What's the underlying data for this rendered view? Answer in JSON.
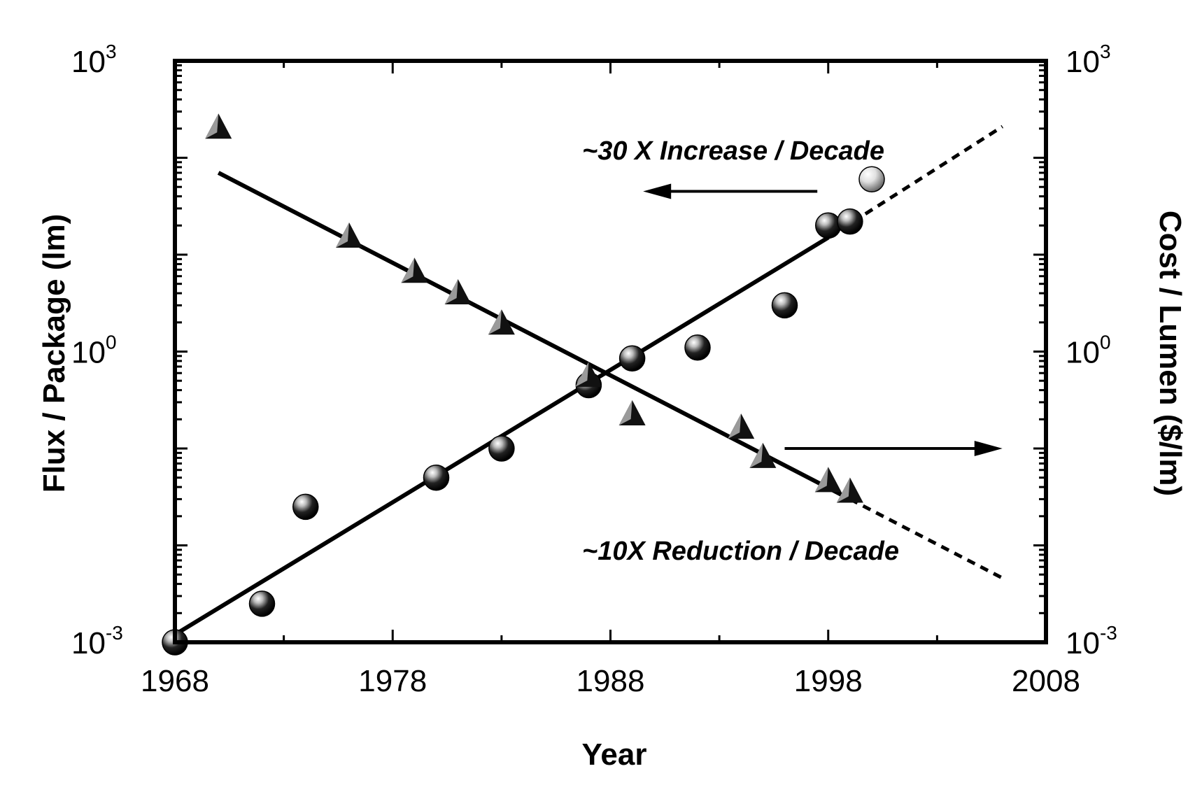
{
  "chart_data": {
    "type": "scatter",
    "xlabel": "Year",
    "ylabel_left": "Flux  /  Package (lm)",
    "ylabel_right": "Cost / Lumen ($/lm)",
    "xlim": [
      1968,
      2008
    ],
    "ylim_log10": [
      -3,
      3
    ],
    "y_scale": "log",
    "x_ticks": [
      {
        "value": 1968,
        "label": "1968"
      },
      {
        "value": 1978,
        "label": "1978"
      },
      {
        "value": 1988,
        "label": "1988"
      },
      {
        "value": 1998,
        "label": "1998"
      },
      {
        "value": 2008,
        "label": "2008"
      }
    ],
    "y_ticks": [
      {
        "value": -3,
        "base": "10",
        "exp": "-3"
      },
      {
        "value": 0,
        "base": "10",
        "exp": "0"
      },
      {
        "value": 3,
        "base": "10",
        "exp": "3"
      }
    ],
    "annotations": {
      "increase": "~30 X  Increase / Decade",
      "reduction": "~10X  Reduction / Decade"
    },
    "series": [
      {
        "marker": "sphere",
        "color": "#111111",
        "points": [
          [
            1968.0,
            0.001
          ],
          [
            1972.0,
            0.0025
          ],
          [
            1974.0,
            0.025
          ],
          [
            1980.0,
            0.05
          ],
          [
            1983.0,
            0.1
          ],
          [
            1987.0,
            0.45
          ],
          [
            1989.0,
            0.85
          ],
          [
            1992.0,
            1.1
          ],
          [
            1996.0,
            3.0
          ],
          [
            1998.0,
            20.0
          ],
          [
            1999.0,
            22.0
          ]
        ]
      },
      {
        "marker": "sphere-light",
        "color": "#bbbbbb",
        "points": [
          [
            2000.0,
            60.0
          ]
        ]
      },
      {
        "marker": "triangle",
        "color": "#111111",
        "points": [
          [
            1970.0,
            200.0
          ],
          [
            1976.0,
            15.0
          ],
          [
            1979.0,
            6.5
          ],
          [
            1981.0,
            3.9
          ],
          [
            1983.0,
            1.9
          ],
          [
            1987.0,
            0.55
          ],
          [
            1989.0,
            0.22
          ],
          [
            1994.0,
            0.16
          ],
          [
            1995.0,
            0.08
          ],
          [
            1998.0,
            0.045
          ],
          [
            1999.0,
            0.035
          ]
        ]
      }
    ],
    "fit_lines": [
      {
        "name": "flux-fit",
        "solid": [
          [
            1968.0,
            0.0012
          ],
          [
            1998.0,
            15.0
          ]
        ],
        "dashed": [
          [
            1998.0,
            15.0
          ],
          [
            2006.0,
            210.0
          ]
        ]
      },
      {
        "name": "cost-fit",
        "solid": [
          [
            1970.0,
            70.0
          ],
          [
            1999.0,
            0.03
          ]
        ],
        "dashed": [
          [
            1999.0,
            0.03
          ],
          [
            2006.0,
            0.0046
          ]
        ]
      }
    ],
    "arrows": [
      {
        "from": [
          1997.5,
          45.0
        ],
        "to": [
          1989.5,
          45.0
        ]
      },
      {
        "from": [
          1996.0,
          0.1
        ],
        "to": [
          2006.0,
          0.1
        ]
      }
    ]
  }
}
